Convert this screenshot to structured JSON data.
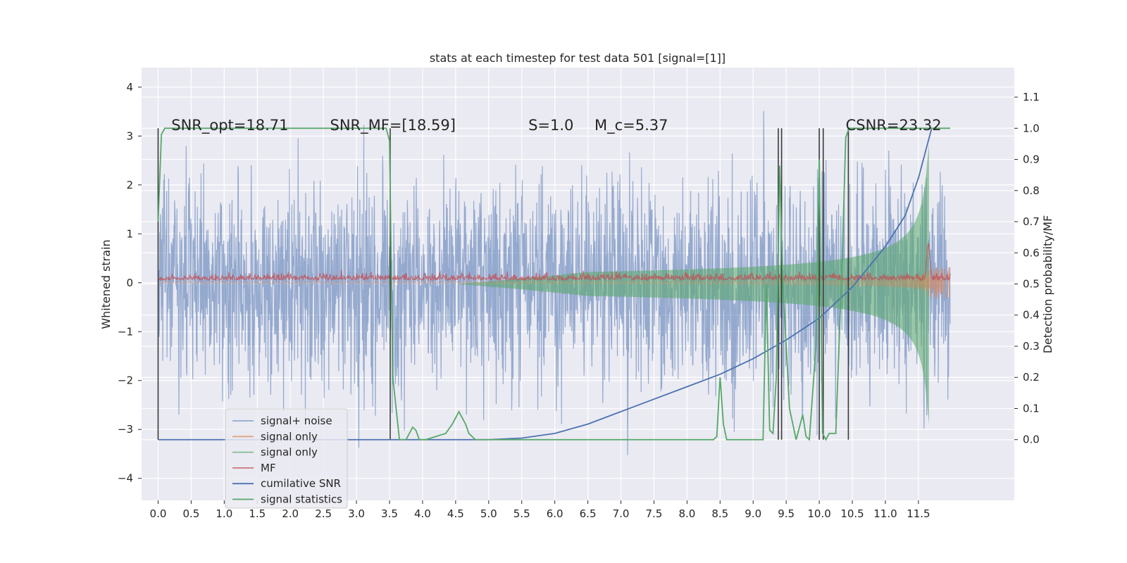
{
  "chart_data": {
    "type": "line",
    "title": "stats at each timestep for test data 501 [signal=[1]]",
    "ylabel_left": "Whitened strain",
    "ylabel_right": "Detection probability/MF",
    "xlim": [
      -0.25,
      12.95
    ],
    "ylim_left": [
      -4.45,
      4.4
    ],
    "ylim_right": [
      -0.195,
      1.195
    ],
    "x_ticks": [
      0.0,
      0.5,
      1.0,
      1.5,
      2.0,
      2.5,
      3.0,
      3.5,
      4.0,
      4.5,
      5.0,
      5.5,
      6.0,
      6.5,
      7.0,
      7.5,
      8.0,
      8.5,
      9.0,
      9.5,
      10.0,
      10.5,
      11.0,
      11.5
    ],
    "x_tick_labels": [
      "0.0",
      "0.5",
      "1.0",
      "1.5",
      "2.0",
      "2.5",
      "3.0",
      "3.5",
      "4.0",
      "4.5",
      "5.0",
      "5.5",
      "6.0",
      "6.5",
      "7.0",
      "7.5",
      "8.0",
      "8.5",
      "9.0",
      "9.5",
      "10.0",
      "10.5",
      "11.0",
      "11.5"
    ],
    "y_left_ticks": [
      -4,
      -3,
      -2,
      -1,
      0,
      1,
      2,
      3,
      4
    ],
    "y_left_tick_labels": [
      "−4",
      "−3",
      "−2",
      "−1",
      "0",
      "1",
      "2",
      "3",
      "4"
    ],
    "y_right_ticks": [
      0.0,
      0.1,
      0.2,
      0.3,
      0.4,
      0.5,
      0.6,
      0.7,
      0.8,
      0.9,
      1.0,
      1.1
    ],
    "y_right_tick_labels": [
      "0.0",
      "0.1",
      "0.2",
      "0.3",
      "0.4",
      "0.5",
      "0.6",
      "0.7",
      "0.8",
      "0.9",
      "1.0",
      "1.1"
    ],
    "grid": true,
    "legend_placement": "lower-left",
    "annotations": [
      {
        "text": "SNR_opt=18.71",
        "x": 0.2
      },
      {
        "text": "SNR_MF=[18.59]",
        "x": 2.6
      },
      {
        "text": "S=1.0",
        "x": 5.6
      },
      {
        "text": "M_c=5.37",
        "x": 6.6
      },
      {
        "text": "CSNR=23.32",
        "x": 10.4
      }
    ],
    "series": [
      {
        "name": "signal+ noise",
        "axis": "left",
        "color": "#4c72b0",
        "kind": "noise",
        "x_range": [
          0.0,
          11.98
        ],
        "amplitude_std": 1.0
      },
      {
        "name": "signal only",
        "axis": "left",
        "color": "#dd8452",
        "kind": "chirp",
        "x_range": [
          0.0,
          11.98
        ],
        "peak_amplitude": 1.0
      },
      {
        "name": "signal only",
        "axis": "right",
        "color": "#55a868",
        "kind": "chirp-fill",
        "x_range": [
          0.0,
          11.66
        ],
        "center": 0.5,
        "peak_amplitude": 0.5
      },
      {
        "name": "MF",
        "axis": "right",
        "color": "#c44e52",
        "kind": "mf",
        "x_range": [
          0.0,
          11.98
        ],
        "baseline": 0.5,
        "peak": {
          "x": 11.65,
          "y": 0.62
        }
      },
      {
        "name": "cumilative SNR",
        "axis": "right",
        "color": "#4c72b0",
        "x": [
          0.0,
          5.0,
          5.5,
          6.0,
          6.5,
          7.0,
          7.5,
          8.0,
          8.5,
          9.0,
          9.5,
          10.0,
          10.5,
          11.0,
          11.3,
          11.5,
          11.65,
          11.7
        ],
        "y": [
          0.0,
          0.0,
          0.005,
          0.02,
          0.05,
          0.09,
          0.13,
          0.17,
          0.21,
          0.26,
          0.32,
          0.39,
          0.49,
          0.62,
          0.72,
          0.84,
          0.96,
          1.0
        ]
      },
      {
        "name": "signal statistics",
        "axis": "right",
        "color": "#55a868",
        "x": [
          0.0,
          0.05,
          0.1,
          0.2,
          3.45,
          3.5,
          3.55,
          3.65,
          3.75,
          3.85,
          3.9,
          3.95,
          4.05,
          4.35,
          4.45,
          4.55,
          4.65,
          4.7,
          4.8,
          4.9,
          5.0,
          5.5,
          8.4,
          8.45,
          8.5,
          8.55,
          8.6,
          8.7,
          9.15,
          9.2,
          9.25,
          9.3,
          9.35,
          9.4,
          9.45,
          9.55,
          9.65,
          9.75,
          9.8,
          9.85,
          9.95,
          10.0,
          10.05,
          10.1,
          10.15,
          10.25,
          10.35,
          10.4,
          10.45,
          10.5,
          10.55,
          10.6,
          10.65,
          10.7,
          11.55,
          11.65,
          11.7,
          11.98
        ],
        "y": [
          0.7,
          0.98,
          1.0,
          1.0,
          1.0,
          0.96,
          0.2,
          0.0,
          0.0,
          0.04,
          0.03,
          0.0,
          0.0,
          0.02,
          0.05,
          0.09,
          0.05,
          0.02,
          0.0,
          0.0,
          0.0,
          0.0,
          0.0,
          0.01,
          0.2,
          0.05,
          0.0,
          0.0,
          0.0,
          0.5,
          0.03,
          0.02,
          0.2,
          0.88,
          0.5,
          0.1,
          0.0,
          0.08,
          0.01,
          0.0,
          0.3,
          0.9,
          0.02,
          0.0,
          0.02,
          0.02,
          0.6,
          0.97,
          1.0,
          1.0,
          1.0,
          1.0,
          1.0,
          1.0,
          1.0,
          1.0,
          1.0,
          1.0
        ]
      }
    ],
    "vertical_lines": [
      0.0,
      3.51,
      9.38,
      9.43,
      10.0,
      10.06,
      10.44
    ],
    "legend": [
      "signal+ noise",
      "signal only",
      "signal only",
      "MF",
      "cumilative SNR",
      "signal statistics"
    ]
  }
}
